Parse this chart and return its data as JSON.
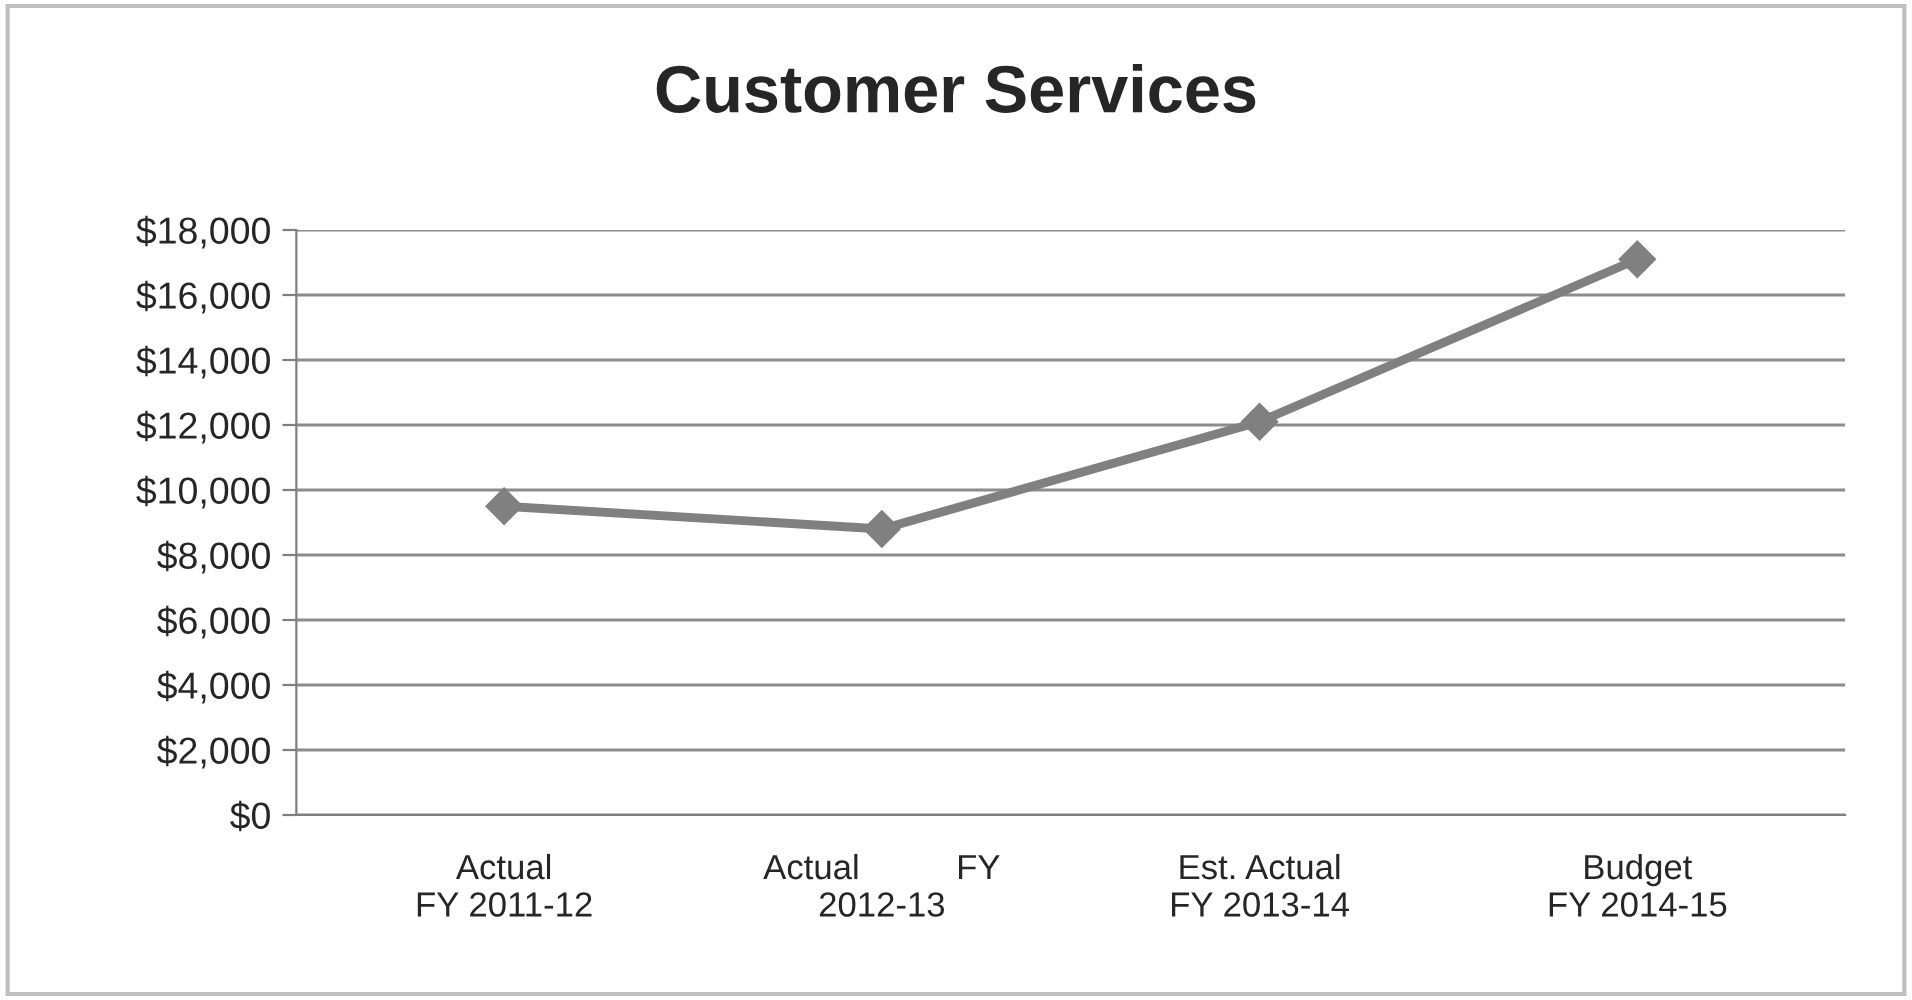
{
  "chart_data": {
    "type": "line",
    "title": "Customer Services",
    "categories": [
      "Actual\nFY 2011-12",
      "Actual          FY\n2012-13",
      "Est. Actual\nFY 2013-14",
      "Budget\nFY 2014-15"
    ],
    "series": [
      {
        "color": "#808080",
        "values": [
          9500,
          8800,
          12100,
          17100
        ]
      }
    ],
    "ylim": [
      0,
      18000
    ],
    "yticks": [
      {
        "value": 0,
        "label": "$0"
      },
      {
        "value": 2000,
        "label": "$2,000"
      },
      {
        "value": 4000,
        "label": "$4,000"
      },
      {
        "value": 6000,
        "label": "$6,000"
      },
      {
        "value": 8000,
        "label": "$8,000"
      },
      {
        "value": 10000,
        "label": "$10,000"
      },
      {
        "value": 12000,
        "label": "$12,000"
      },
      {
        "value": 14000,
        "label": "$14,000"
      },
      {
        "value": 16000,
        "label": "$16,000"
      },
      {
        "value": 18000,
        "label": "$18,000"
      }
    ],
    "grid": "y",
    "marker": "diamond",
    "line_style": "solid",
    "legend": false
  }
}
